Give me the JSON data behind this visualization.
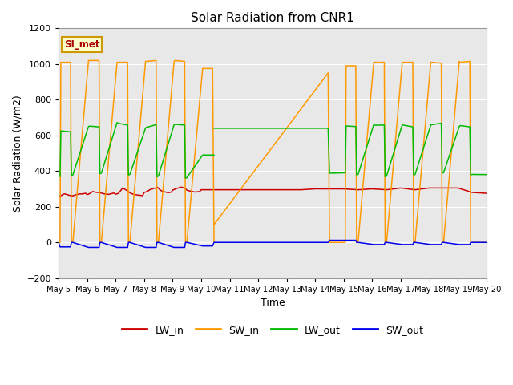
{
  "title": "Solar Radiation from CNR1",
  "xlabel": "Time",
  "ylabel": "Solar Radiation (W/m2)",
  "ylim": [
    -200,
    1200
  ],
  "yticks": [
    -200,
    0,
    200,
    400,
    600,
    800,
    1000,
    1200
  ],
  "x_tick_labels": [
    "May 5",
    "May 6",
    "May 7",
    "May 8",
    "May 9",
    "May 10",
    "May 11",
    "May 12",
    "May 13",
    "May 14",
    "May 15",
    "May 16",
    "May 17",
    "May 18",
    "May 19",
    "May 20"
  ],
  "x_tick_positions": [
    0,
    1,
    2,
    3,
    4,
    5,
    6,
    7,
    8,
    9,
    10,
    11,
    12,
    13,
    14,
    15
  ],
  "annotation_text": "SI_met",
  "plot_bg_color": "#e8e8e8",
  "figure_bg": "#ffffff",
  "grid_color": "#ffffff",
  "LW_in_color": "#cc0000",
  "SW_in_color": "#ff9900",
  "LW_out_color": "#00bb00",
  "SW_out_color": "#0000ee",
  "lw_in_x": [
    0.0,
    0.05,
    0.1,
    0.15,
    0.2,
    0.25,
    0.3,
    0.35,
    0.4,
    0.45,
    0.5,
    0.55,
    0.6,
    0.65,
    0.7,
    0.75,
    0.8,
    0.85,
    0.9,
    0.95,
    1.0,
    1.05,
    1.1,
    1.15,
    1.2,
    1.25,
    1.3,
    1.35,
    1.4,
    1.45,
    1.5,
    1.55,
    1.6,
    1.65,
    1.7,
    1.75,
    1.8,
    1.85,
    1.9,
    1.95,
    2.0,
    2.05,
    2.1,
    2.15,
    2.2,
    2.25,
    2.3,
    2.35,
    2.4,
    2.45,
    2.5,
    2.55,
    2.6,
    2.65,
    2.7,
    2.75,
    2.8,
    2.85,
    2.9,
    2.95,
    3.0,
    3.05,
    3.1,
    3.15,
    3.2,
    3.25,
    3.3,
    3.35,
    3.4,
    3.45,
    3.5,
    3.55,
    3.6,
    3.65,
    3.7,
    3.75,
    3.8,
    3.85,
    3.9,
    3.95,
    4.0,
    4.05,
    4.1,
    4.15,
    4.2,
    4.25,
    4.3,
    4.35,
    4.4,
    4.45,
    4.5,
    4.55,
    4.6,
    4.65,
    4.7,
    4.75,
    4.8,
    4.85,
    4.9,
    4.95,
    5.0,
    5.5,
    6.0,
    6.5,
    7.0,
    7.5,
    8.0,
    8.5,
    9.0,
    9.5,
    10.0,
    10.5,
    11.0,
    11.5,
    12.0,
    12.5,
    13.0,
    13.5,
    14.0,
    14.5,
    15.0
  ],
  "lw_in_y": [
    258,
    260,
    263,
    268,
    272,
    270,
    268,
    265,
    263,
    262,
    261,
    264,
    267,
    268,
    270,
    272,
    271,
    272,
    274,
    275,
    268,
    270,
    275,
    280,
    285,
    283,
    281,
    280,
    280,
    279,
    276,
    274,
    272,
    271,
    270,
    269,
    271,
    273,
    275,
    276,
    270,
    272,
    275,
    285,
    295,
    305,
    300,
    295,
    290,
    285,
    278,
    274,
    271,
    268,
    267,
    266,
    265,
    264,
    263,
    262,
    280,
    282,
    285,
    290,
    295,
    298,
    300,
    303,
    305,
    310,
    305,
    295,
    290,
    286,
    284,
    282,
    280,
    279,
    280,
    282,
    293,
    296,
    300,
    303,
    305,
    308,
    310,
    308,
    305,
    300,
    293,
    290,
    288,
    286,
    285,
    283,
    282,
    283,
    284,
    285,
    295,
    295,
    295,
    295,
    295,
    295,
    295,
    295,
    300,
    300,
    300,
    295,
    300,
    295,
    305,
    295,
    305,
    305,
    305,
    280,
    275
  ],
  "sw_in_seg1_x": [
    0.05,
    0.08,
    0.42,
    0.45,
    0.5,
    1.05,
    1.08,
    1.42,
    1.45,
    1.5,
    2.05,
    2.08,
    2.42,
    2.45,
    2.5,
    3.05,
    3.08,
    3.42,
    3.45,
    3.5,
    4.05,
    4.08,
    4.42,
    4.45,
    4.5,
    5.05,
    5.4,
    5.45
  ],
  "sw_in_seg1_y": [
    0,
    1010,
    1010,
    0,
    0,
    1020,
    1020,
    1020,
    0,
    0,
    1010,
    1010,
    1010,
    0,
    0,
    1015,
    1015,
    1020,
    0,
    0,
    1015,
    1020,
    1015,
    0,
    0,
    975,
    975,
    0
  ],
  "sw_in_seg2_x": [
    5.45,
    9.45,
    9.5,
    10.05,
    10.08,
    10.42,
    10.45,
    10.5,
    11.05,
    11.08,
    11.42,
    11.45,
    11.5,
    12.05,
    12.08,
    12.42,
    12.45,
    12.5,
    13.05,
    13.08,
    13.42,
    13.45,
    13.5,
    14.05,
    14.08,
    14.42,
    14.45,
    14.5,
    15.0
  ],
  "sw_in_seg2_y": [
    100,
    950,
    0,
    0,
    990,
    990,
    0,
    0,
    1010,
    1010,
    1010,
    0,
    0,
    1010,
    1010,
    1010,
    0,
    0,
    1010,
    1010,
    1005,
    0,
    0,
    1015,
    1010,
    1015,
    0,
    0,
    0
  ],
  "lw_out_seg1_x": [
    0.0,
    0.05,
    0.08,
    0.42,
    0.45,
    0.5,
    1.05,
    1.08,
    1.42,
    1.45,
    1.5,
    2.05,
    2.08,
    2.42,
    2.45,
    2.5,
    3.05,
    3.08,
    3.42,
    3.45,
    3.5,
    4.05,
    4.08,
    4.42,
    4.45,
    4.5,
    5.05,
    5.4,
    5.45
  ],
  "lw_out_seg1_y": [
    370,
    370,
    625,
    620,
    375,
    378,
    650,
    652,
    648,
    385,
    388,
    672,
    668,
    658,
    378,
    381,
    642,
    645,
    660,
    368,
    372,
    660,
    662,
    658,
    360,
    363,
    490,
    490,
    490
  ],
  "lw_out_seg2_x": [
    5.45,
    9.45,
    9.5,
    10.05,
    10.08,
    10.42,
    10.45,
    10.5,
    11.05,
    11.08,
    11.42,
    11.45,
    11.5,
    12.05,
    12.08,
    12.42,
    12.45,
    12.5,
    13.05,
    13.08,
    13.42,
    13.45,
    13.5,
    14.05,
    14.08,
    14.42,
    14.45,
    14.5,
    15.0
  ],
  "lw_out_seg2_y": [
    640,
    640,
    388,
    390,
    653,
    650,
    378,
    381,
    660,
    657,
    658,
    368,
    372,
    660,
    658,
    648,
    378,
    381,
    658,
    660,
    668,
    388,
    391,
    650,
    655,
    648,
    378,
    381,
    380
  ],
  "sw_out_x": [
    0.0,
    0.05,
    0.42,
    0.45,
    0.5,
    1.05,
    1.42,
    1.45,
    1.5,
    2.05,
    2.42,
    2.45,
    2.5,
    3.05,
    3.42,
    3.45,
    3.5,
    4.05,
    4.42,
    4.45,
    4.5,
    5.05,
    5.4,
    5.45,
    5.5,
    9.45,
    9.5,
    10.05,
    10.42,
    10.45,
    10.5,
    11.05,
    11.42,
    11.45,
    11.5,
    12.05,
    12.42,
    12.45,
    12.5,
    13.05,
    13.42,
    13.45,
    13.5,
    14.05,
    14.42,
    14.45,
    14.5,
    15.0
  ],
  "sw_out_y": [
    0,
    -25,
    -25,
    0,
    0,
    -28,
    -28,
    0,
    0,
    -28,
    -28,
    0,
    0,
    -28,
    -28,
    0,
    0,
    -28,
    -28,
    0,
    0,
    -20,
    -20,
    0,
    0,
    0,
    12,
    12,
    12,
    0,
    0,
    -12,
    -12,
    0,
    0,
    -12,
    -12,
    0,
    0,
    -12,
    -12,
    0,
    0,
    -12,
    -12,
    0,
    0,
    0
  ]
}
